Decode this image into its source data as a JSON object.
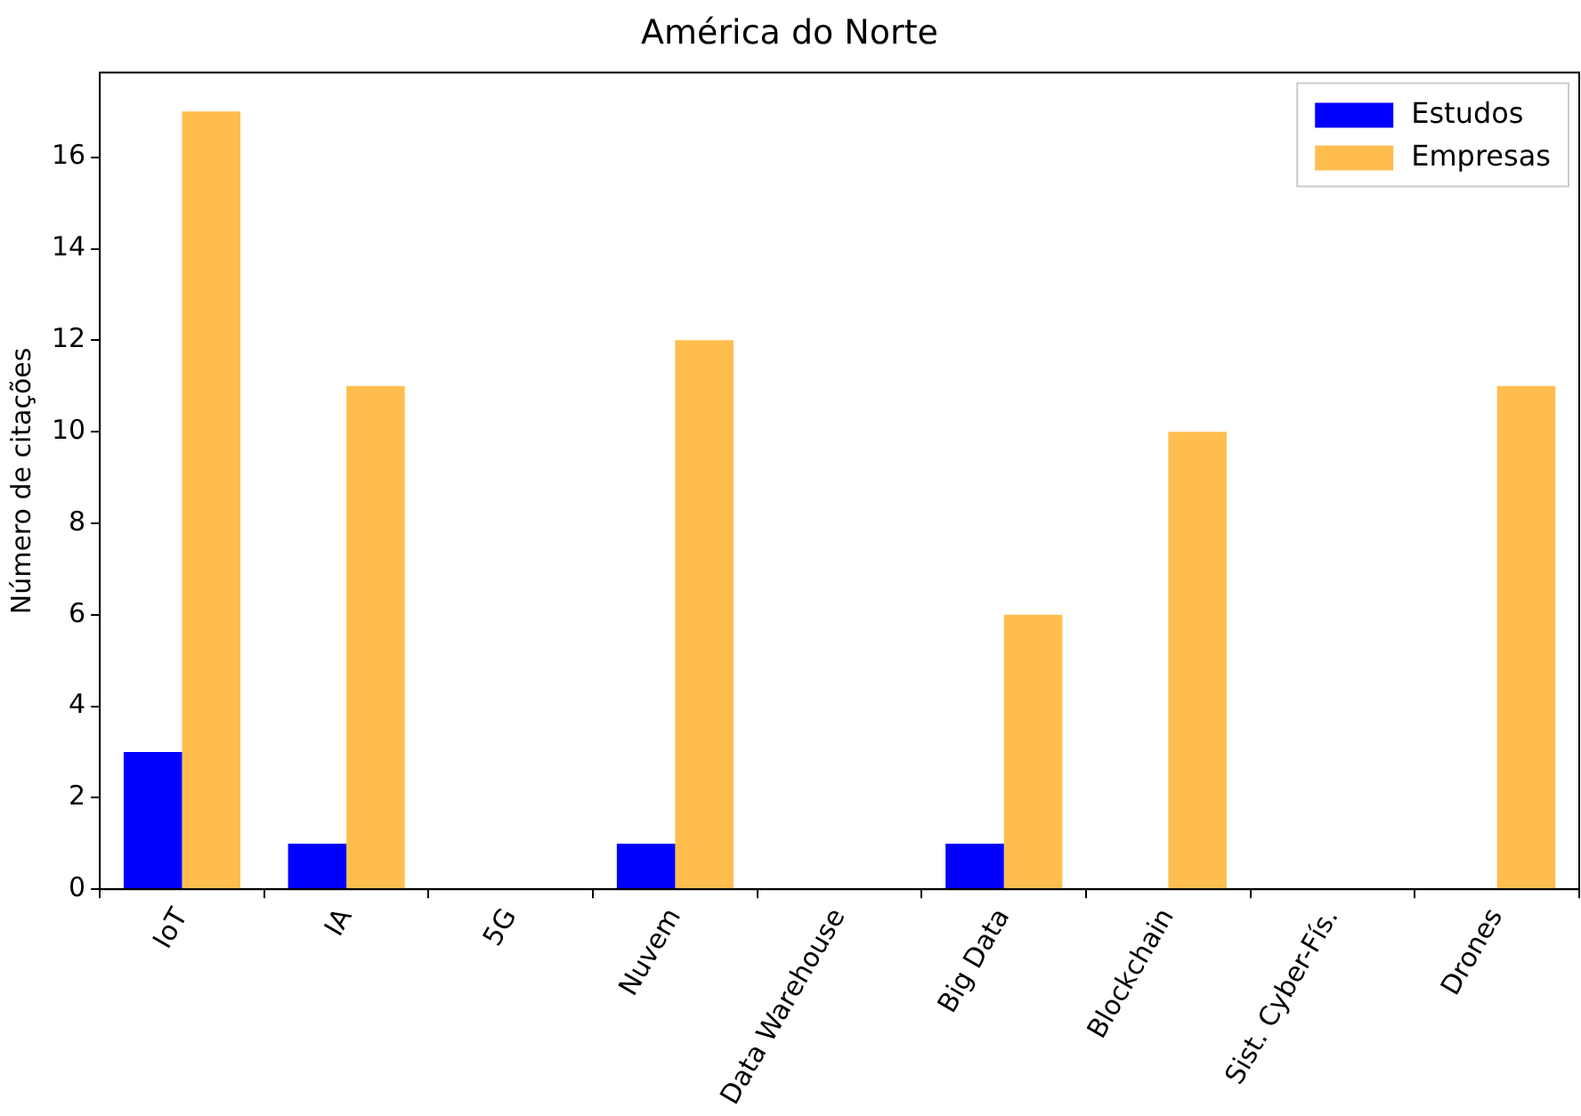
{
  "chart_data": {
    "type": "bar",
    "title": "América do Norte",
    "ylabel": "Número de citações",
    "categories": [
      "IoT",
      "IA",
      "5G",
      "Nuvem",
      "Data Warehouse",
      "Big Data",
      "Blockchain",
      "Sist. Cyber-Fís.",
      "Drones"
    ],
    "series": [
      {
        "name": "Estudos",
        "color": "#0000ff",
        "values": [
          3,
          1,
          0,
          1,
          0,
          1,
          0,
          0,
          0
        ]
      },
      {
        "name": "Empresas",
        "color": "#ffbe4d",
        "values": [
          17,
          11,
          0,
          12,
          0,
          6,
          10,
          0,
          11
        ]
      }
    ],
    "ylim": [
      0,
      17.85
    ],
    "yticks": [
      0,
      2,
      4,
      6,
      8,
      10,
      12,
      14,
      16
    ],
    "grid": false,
    "legend": "top right"
  }
}
